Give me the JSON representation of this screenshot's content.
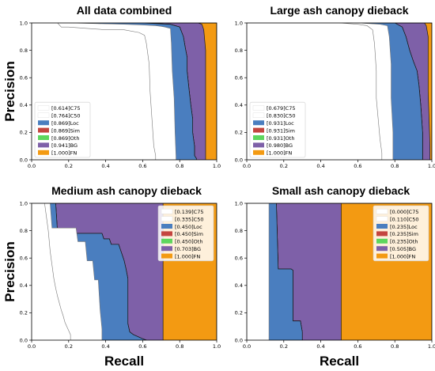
{
  "colors": {
    "C75": "#ffffff",
    "C50": "#ffffff",
    "Loc": "#4a7ebf",
    "Sim": "#c4453f",
    "Oth": "#5ed65e",
    "BG": "#7e60a8",
    "FN": "#f39a12"
  },
  "chart_data": [
    {
      "type": "area",
      "title": "All data combined",
      "xlabel": "",
      "ylabel": "Precision",
      "xlim": [
        0.0,
        1.0
      ],
      "ylim": [
        0.0,
        1.0
      ],
      "xticks": [
        "0.0",
        "0.2",
        "0.4",
        "0.6",
        "0.8",
        "1.0"
      ],
      "yticks": [
        "0.0",
        "0.2",
        "0.4",
        "0.6",
        "0.8",
        "1.0"
      ],
      "legend_position": "lower-left",
      "legend": [
        {
          "key": "C75",
          "label": "[0.614]C75"
        },
        {
          "key": "C50",
          "label": "[0.764]C50"
        },
        {
          "key": "Loc",
          "label": "[0.869]Loc"
        },
        {
          "key": "Sim",
          "label": "[0.869]Sim"
        },
        {
          "key": "Oth",
          "label": "[0.869]Oth"
        },
        {
          "key": "BG",
          "label": "[0.941]BG"
        },
        {
          "key": "FN",
          "label": "[1.000]FN"
        }
      ],
      "series": [
        {
          "key": "C75",
          "x": [
            0.0,
            0.14,
            0.16,
            0.2,
            0.3,
            0.4,
            0.5,
            0.58,
            0.61,
            0.62,
            0.635,
            0.64,
            0.65,
            0.66,
            0.67,
            0.67
          ],
          "y": [
            1.0,
            1.0,
            0.97,
            0.97,
            0.96,
            0.95,
            0.95,
            0.93,
            0.91,
            0.85,
            0.7,
            0.5,
            0.3,
            0.1,
            0.03,
            0.0
          ]
        },
        {
          "key": "C50",
          "x": [
            0.0,
            0.2,
            0.35,
            0.5,
            0.6,
            0.67,
            0.7,
            0.72,
            0.75,
            0.755,
            0.76,
            0.77,
            0.775,
            0.78,
            0.78
          ],
          "y": [
            1.0,
            1.0,
            0.995,
            0.99,
            0.985,
            0.98,
            0.975,
            0.97,
            0.96,
            0.85,
            0.65,
            0.45,
            0.2,
            0.03,
            0.0
          ]
        },
        {
          "key": "Loc",
          "x": [
            0.0,
            0.6,
            0.75,
            0.8,
            0.82,
            0.83,
            0.84,
            0.84,
            0.85,
            0.86,
            0.87,
            0.87,
            0.88,
            0.88,
            0.89,
            0.89
          ],
          "y": [
            1.0,
            1.0,
            0.99,
            0.97,
            0.9,
            0.82,
            0.75,
            0.65,
            0.52,
            0.4,
            0.3,
            0.2,
            0.1,
            0.03,
            0.01,
            0.0
          ]
        },
        {
          "key": "Sim",
          "x": [
            0.0,
            0.6,
            0.75,
            0.8,
            0.82,
            0.83,
            0.84,
            0.84,
            0.85,
            0.86,
            0.87,
            0.87,
            0.88,
            0.88,
            0.89,
            0.89
          ],
          "y": [
            1.0,
            1.0,
            0.99,
            0.97,
            0.9,
            0.82,
            0.75,
            0.65,
            0.52,
            0.4,
            0.3,
            0.2,
            0.1,
            0.03,
            0.01,
            0.0
          ]
        },
        {
          "key": "Oth",
          "x": [
            0.0,
            0.6,
            0.75,
            0.8,
            0.82,
            0.83,
            0.84,
            0.84,
            0.85,
            0.86,
            0.87,
            0.87,
            0.88,
            0.88,
            0.89,
            0.89
          ],
          "y": [
            1.0,
            1.0,
            0.99,
            0.97,
            0.9,
            0.82,
            0.75,
            0.65,
            0.52,
            0.4,
            0.3,
            0.2,
            0.1,
            0.03,
            0.01,
            0.0
          ]
        },
        {
          "key": "BG",
          "x": [
            0.0,
            0.9,
            0.92,
            0.93,
            0.94,
            0.94,
            0.94
          ],
          "y": [
            1.0,
            1.0,
            0.99,
            0.95,
            0.8,
            0.3,
            0.0
          ]
        },
        {
          "key": "FN",
          "x": [
            0.0,
            1.0,
            1.0
          ],
          "y": [
            1.0,
            1.0,
            0.0
          ]
        }
      ]
    },
    {
      "type": "area",
      "title": "Large ash canopy dieback",
      "xlabel": "",
      "ylabel": "",
      "xlim": [
        0.0,
        1.0
      ],
      "ylim": [
        0.0,
        1.0
      ],
      "xticks": [
        "0.0",
        "0.2",
        "0.4",
        "0.6",
        "0.8",
        "1.0"
      ],
      "yticks": [
        "0.0",
        "0.2",
        "0.4",
        "0.6",
        "0.8",
        "1.0"
      ],
      "legend_position": "lower-left",
      "legend": [
        {
          "key": "C75",
          "label": "[0.679]C75"
        },
        {
          "key": "C50",
          "label": "[0.830]C50"
        },
        {
          "key": "Loc",
          "label": "[0.931]Loc"
        },
        {
          "key": "Sim",
          "label": "[0.931]Sim"
        },
        {
          "key": "Oth",
          "label": "[0.931]Oth"
        },
        {
          "key": "BG",
          "label": "[0.980]BG"
        },
        {
          "key": "FN",
          "label": "[1.000]FN"
        }
      ],
      "series": [
        {
          "key": "C75",
          "x": [
            0.0,
            0.5,
            0.6,
            0.65,
            0.68,
            0.69,
            0.7,
            0.7,
            0.71,
            0.72,
            0.73,
            0.73
          ],
          "y": [
            1.0,
            1.0,
            0.99,
            0.98,
            0.95,
            0.85,
            0.65,
            0.45,
            0.3,
            0.15,
            0.05,
            0.0
          ]
        },
        {
          "key": "C50",
          "x": [
            0.0,
            0.6,
            0.72,
            0.76,
            0.77,
            0.78,
            0.78,
            0.79,
            0.79,
            0.79
          ],
          "y": [
            1.0,
            1.0,
            0.99,
            0.98,
            0.9,
            0.7,
            0.45,
            0.2,
            0.05,
            0.0
          ]
        },
        {
          "key": "Loc",
          "x": [
            0.0,
            0.8,
            0.84,
            0.86,
            0.88,
            0.9,
            0.92,
            0.93,
            0.94,
            0.95,
            0.95
          ],
          "y": [
            1.0,
            1.0,
            0.97,
            0.9,
            0.8,
            0.72,
            0.65,
            0.55,
            0.4,
            0.2,
            0.0
          ]
        },
        {
          "key": "Sim",
          "x": [
            0.0,
            0.8,
            0.84,
            0.86,
            0.88,
            0.9,
            0.92,
            0.93,
            0.94,
            0.95,
            0.95
          ],
          "y": [
            1.0,
            1.0,
            0.97,
            0.9,
            0.8,
            0.72,
            0.65,
            0.55,
            0.4,
            0.2,
            0.0
          ]
        },
        {
          "key": "Oth",
          "x": [
            0.0,
            0.8,
            0.84,
            0.86,
            0.88,
            0.9,
            0.92,
            0.93,
            0.94,
            0.95,
            0.95
          ],
          "y": [
            1.0,
            1.0,
            0.97,
            0.9,
            0.8,
            0.72,
            0.65,
            0.55,
            0.4,
            0.2,
            0.0
          ]
        },
        {
          "key": "BG",
          "x": [
            0.0,
            0.96,
            0.97,
            0.98,
            0.98,
            0.99,
            0.99
          ],
          "y": [
            1.0,
            1.0,
            0.98,
            0.9,
            0.5,
            0.1,
            0.0
          ]
        },
        {
          "key": "FN",
          "x": [
            0.0,
            1.0,
            1.0
          ],
          "y": [
            1.0,
            1.0,
            0.0
          ]
        }
      ]
    },
    {
      "type": "area",
      "title": "Medium ash canopy dieback",
      "xlabel": "Recall",
      "ylabel": "Precision",
      "xlim": [
        0.0,
        1.0
      ],
      "ylim": [
        0.0,
        1.0
      ],
      "xticks": [
        "0.0",
        "0.2",
        "0.4",
        "0.6",
        "0.8",
        "1.0"
      ],
      "yticks": [
        "0.0",
        "0.2",
        "0.4",
        "0.6",
        "0.8",
        "1.0"
      ],
      "legend_position": "upper-right",
      "legend": [
        {
          "key": "C75",
          "label": "[0.139]C75"
        },
        {
          "key": "C50",
          "label": "[0.335]C50"
        },
        {
          "key": "Loc",
          "label": "[0.450]Loc"
        },
        {
          "key": "Sim",
          "label": "[0.450]Sim"
        },
        {
          "key": "Oth",
          "label": "[0.450]Oth"
        },
        {
          "key": "BG",
          "label": "[0.703]BG"
        },
        {
          "key": "FN",
          "label": "[1.000]FN"
        }
      ],
      "series": [
        {
          "key": "C75",
          "x": [
            0.0,
            0.07,
            0.08,
            0.09,
            0.1,
            0.11,
            0.12,
            0.13,
            0.14,
            0.15,
            0.16,
            0.17,
            0.18,
            0.19,
            0.2,
            0.21,
            0.21
          ],
          "y": [
            1.0,
            1.0,
            0.9,
            0.8,
            0.65,
            0.55,
            0.45,
            0.38,
            0.32,
            0.27,
            0.22,
            0.18,
            0.13,
            0.1,
            0.07,
            0.04,
            0.0
          ]
        },
        {
          "key": "C50",
          "x": [
            0.0,
            0.1,
            0.11,
            0.2,
            0.24,
            0.25,
            0.29,
            0.3,
            0.33,
            0.34,
            0.36,
            0.37,
            0.38,
            0.38
          ],
          "y": [
            1.0,
            1.0,
            0.82,
            0.82,
            0.82,
            0.72,
            0.72,
            0.58,
            0.58,
            0.44,
            0.44,
            0.22,
            0.08,
            0.0
          ]
        },
        {
          "key": "Loc",
          "x": [
            0.0,
            0.13,
            0.14,
            0.38,
            0.39,
            0.42,
            0.43,
            0.47,
            0.48,
            0.49,
            0.5,
            0.51,
            0.52,
            0.52,
            0.53,
            0.55,
            0.6,
            0.62
          ],
          "y": [
            1.0,
            1.0,
            0.78,
            0.78,
            0.74,
            0.74,
            0.7,
            0.7,
            0.66,
            0.62,
            0.58,
            0.52,
            0.45,
            0.12,
            0.06,
            0.04,
            0.01,
            0.0
          ]
        },
        {
          "key": "Sim",
          "x": [
            0.0,
            0.13,
            0.14,
            0.38,
            0.39,
            0.42,
            0.43,
            0.47,
            0.48,
            0.49,
            0.5,
            0.51,
            0.52,
            0.52,
            0.53,
            0.55,
            0.6,
            0.62
          ],
          "y": [
            1.0,
            1.0,
            0.78,
            0.78,
            0.74,
            0.74,
            0.7,
            0.7,
            0.66,
            0.62,
            0.58,
            0.52,
            0.45,
            0.12,
            0.06,
            0.04,
            0.01,
            0.0
          ]
        },
        {
          "key": "Oth",
          "x": [
            0.0,
            0.13,
            0.14,
            0.38,
            0.39,
            0.42,
            0.43,
            0.47,
            0.48,
            0.49,
            0.5,
            0.51,
            0.52,
            0.52,
            0.53,
            0.55,
            0.6,
            0.62
          ],
          "y": [
            1.0,
            1.0,
            0.78,
            0.78,
            0.74,
            0.74,
            0.7,
            0.7,
            0.66,
            0.62,
            0.58,
            0.52,
            0.45,
            0.12,
            0.06,
            0.04,
            0.01,
            0.0
          ]
        },
        {
          "key": "BG",
          "x": [
            0.0,
            0.71,
            0.71
          ],
          "y": [
            1.0,
            1.0,
            0.0
          ]
        },
        {
          "key": "FN",
          "x": [
            0.0,
            1.0,
            1.0
          ],
          "y": [
            1.0,
            1.0,
            0.0
          ]
        }
      ]
    },
    {
      "type": "area",
      "title": "Small ash canopy dieback",
      "xlabel": "Recall",
      "ylabel": "",
      "xlim": [
        0.0,
        1.0
      ],
      "ylim": [
        0.0,
        1.0
      ],
      "xticks": [
        "0.0",
        "0.2",
        "0.4",
        "0.6",
        "0.8",
        "1.0"
      ],
      "yticks": [
        "0.0",
        "0.2",
        "0.4",
        "0.6",
        "0.8",
        "1.0"
      ],
      "legend_position": "upper-right",
      "legend": [
        {
          "key": "C75",
          "label": "[0.000]C75"
        },
        {
          "key": "C50",
          "label": "[0.110]C50"
        },
        {
          "key": "Loc",
          "label": "[0.235]Loc"
        },
        {
          "key": "Sim",
          "label": "[0.235]Sim"
        },
        {
          "key": "Oth",
          "label": "[0.235]Oth"
        },
        {
          "key": "BG",
          "label": "[0.505]BG"
        },
        {
          "key": "FN",
          "label": "[1.000]FN"
        }
      ],
      "series": [
        {
          "key": "C75",
          "x": [
            0.0,
            0.0
          ],
          "y": [
            1.0,
            0.0
          ]
        },
        {
          "key": "C50",
          "x": [
            0.0,
            0.12,
            0.12
          ],
          "y": [
            1.0,
            1.0,
            0.0
          ]
        },
        {
          "key": "Loc",
          "x": [
            0.0,
            0.16,
            0.17,
            0.24,
            0.25,
            0.25,
            0.29,
            0.3,
            0.3
          ],
          "y": [
            1.0,
            1.0,
            0.52,
            0.52,
            0.51,
            0.14,
            0.14,
            0.06,
            0.0
          ]
        },
        {
          "key": "Sim",
          "x": [
            0.0,
            0.16,
            0.17,
            0.24,
            0.25,
            0.25,
            0.29,
            0.3,
            0.3
          ],
          "y": [
            1.0,
            1.0,
            0.52,
            0.52,
            0.51,
            0.14,
            0.14,
            0.06,
            0.0
          ]
        },
        {
          "key": "Oth",
          "x": [
            0.0,
            0.16,
            0.17,
            0.24,
            0.25,
            0.25,
            0.29,
            0.3,
            0.3
          ],
          "y": [
            1.0,
            1.0,
            0.52,
            0.52,
            0.51,
            0.14,
            0.14,
            0.06,
            0.0
          ]
        },
        {
          "key": "BG",
          "x": [
            0.0,
            0.51,
            0.51
          ],
          "y": [
            1.0,
            1.0,
            0.0
          ]
        },
        {
          "key": "FN",
          "x": [
            0.0,
            1.0,
            1.0
          ],
          "y": [
            1.0,
            1.0,
            0.0
          ]
        }
      ]
    }
  ]
}
